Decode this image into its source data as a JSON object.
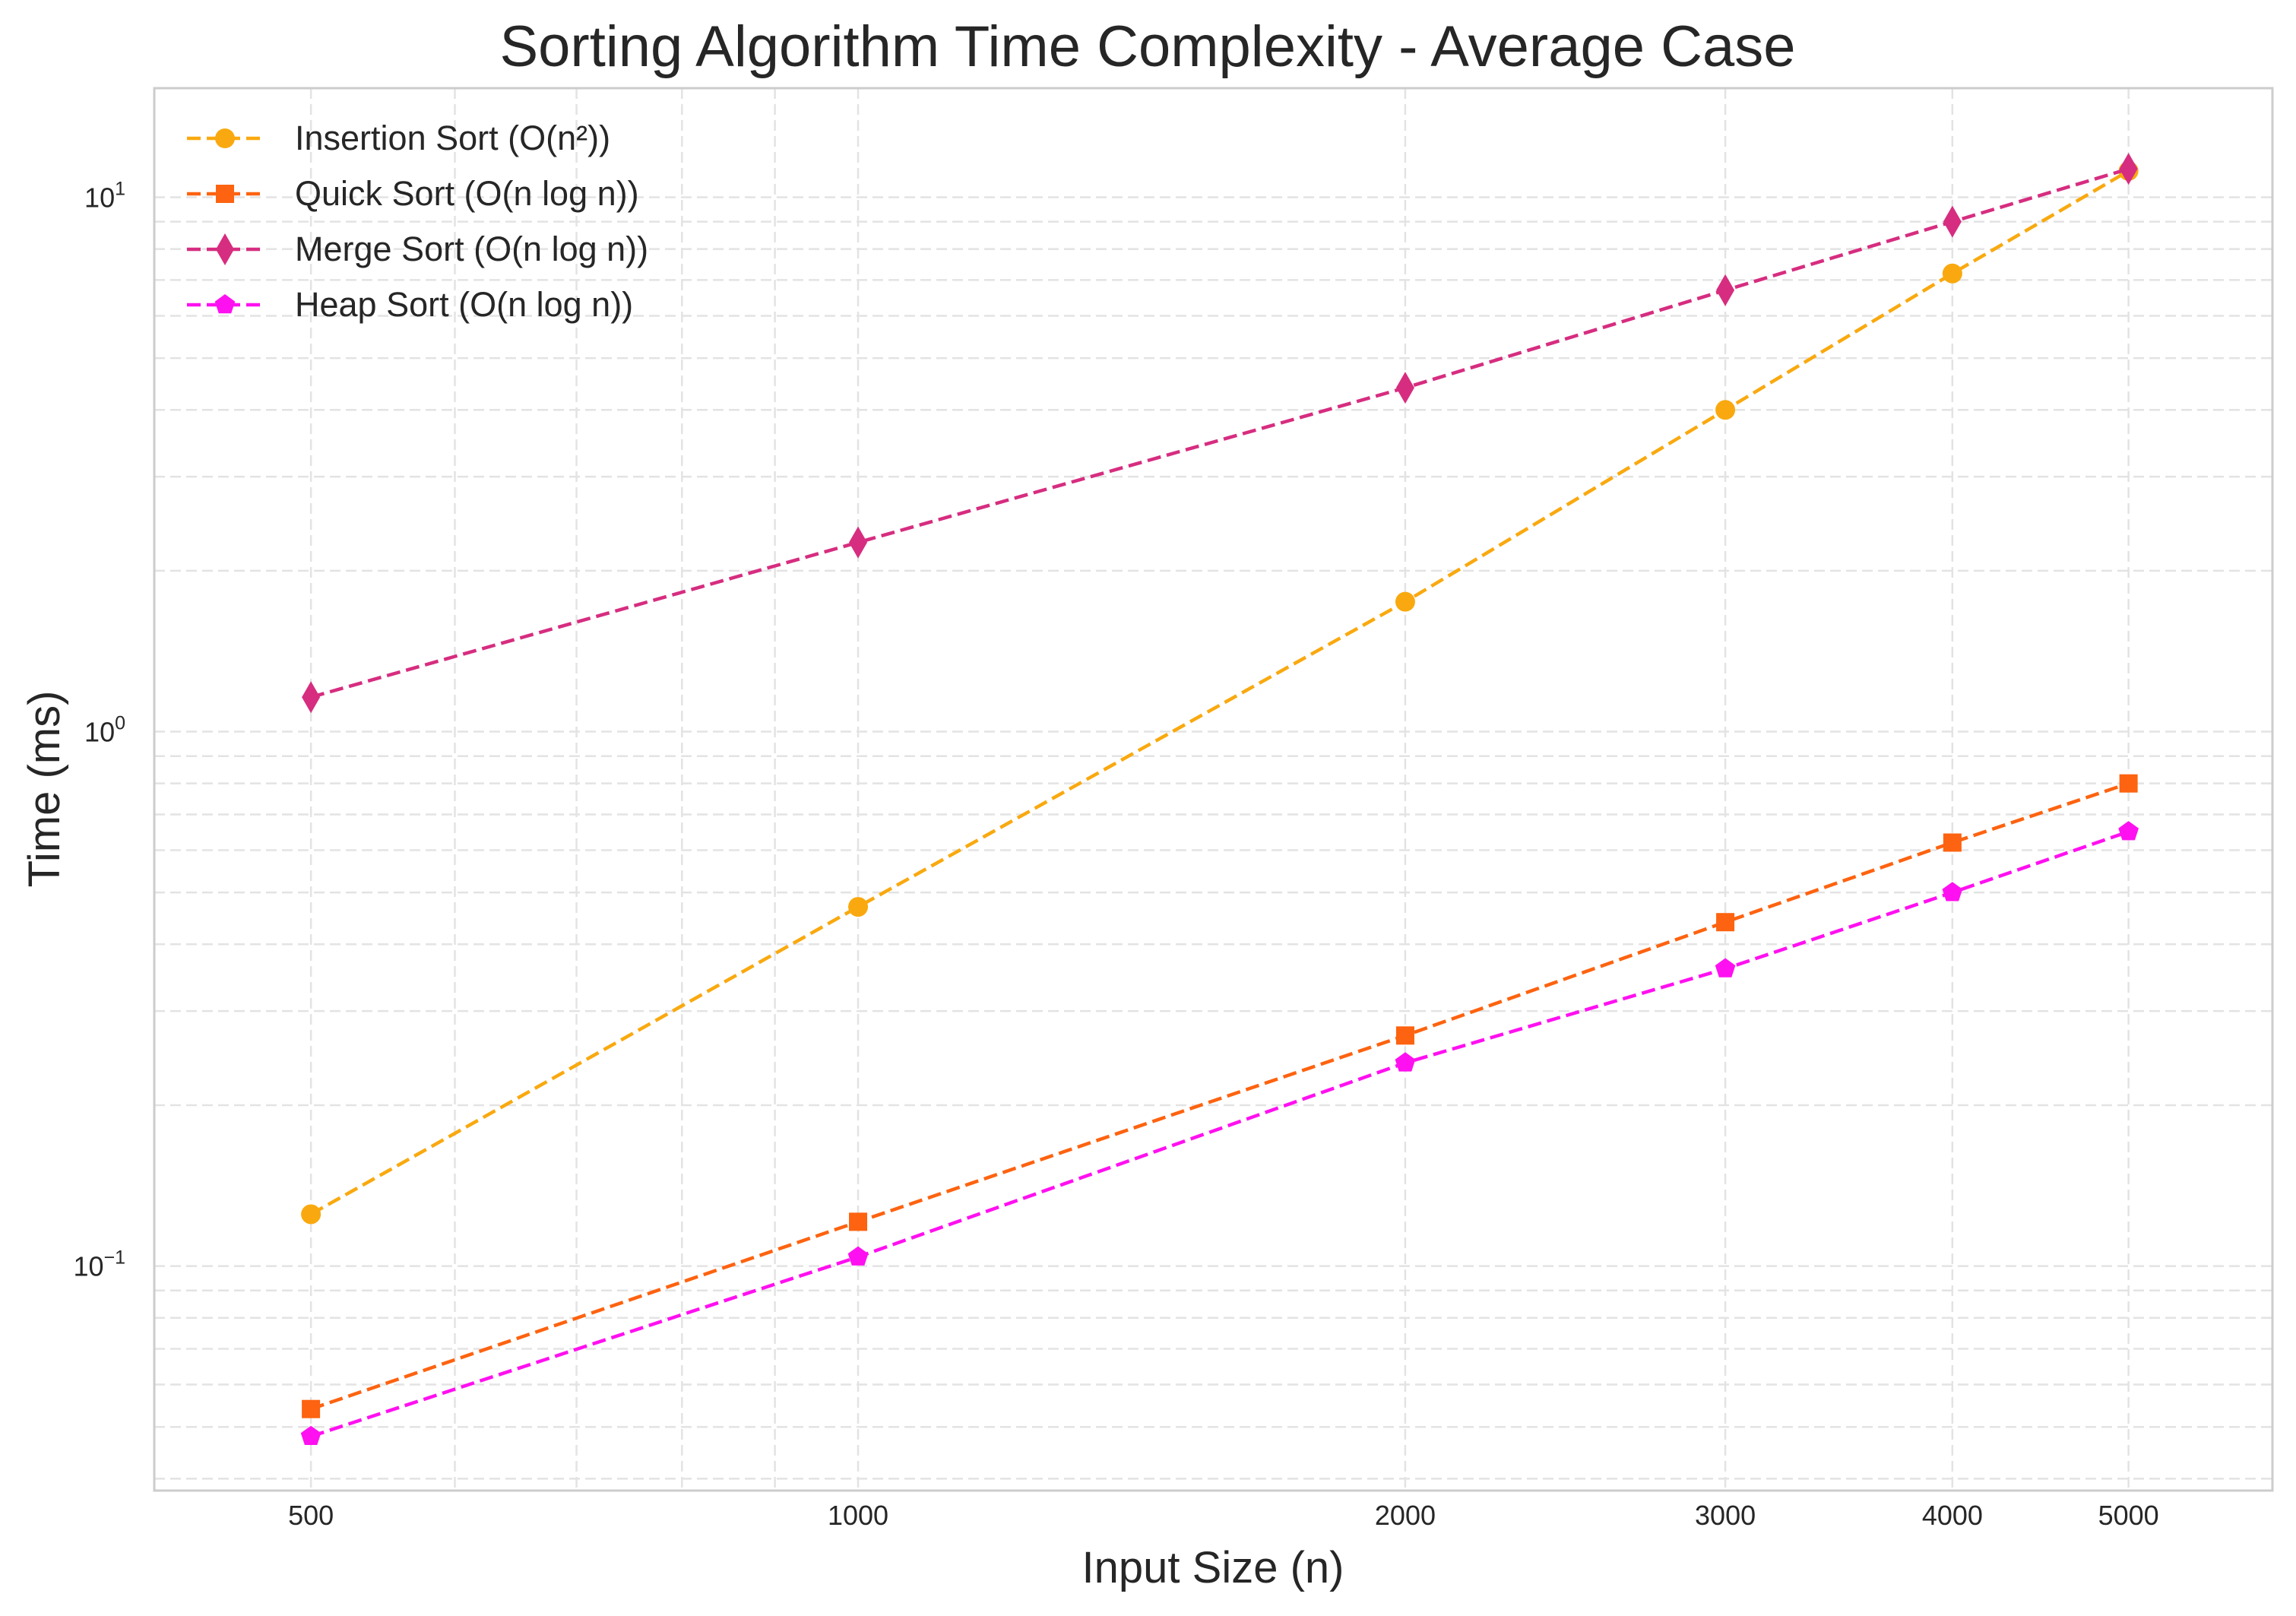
{
  "chart_data": {
    "type": "line",
    "title": "Sorting Algorithm Time Complexity - Average Case",
    "xlabel": "Input Size (n)",
    "ylabel": "Time (ms)",
    "xscale": "log",
    "yscale": "log",
    "x": [
      500,
      1000,
      2000,
      3000,
      4000,
      5000
    ],
    "xticks": [
      "500",
      "1000",
      "2000",
      "3000",
      "4000",
      "5000"
    ],
    "yticks": [
      {
        "base": "10",
        "exp": "−1",
        "value": 0.1
      },
      {
        "base": "10",
        "exp": "0",
        "value": 1
      },
      {
        "base": "10",
        "exp": "1",
        "value": 10
      }
    ],
    "xlim": [
      410,
      6000
    ],
    "ylim": [
      0.038,
      16
    ],
    "grid": true,
    "legend_position": "top-left",
    "series": [
      {
        "name": "Insertion Sort (O(n²))",
        "color": "#F9A90F",
        "marker": "circle",
        "values": [
          0.125,
          0.47,
          1.75,
          4.0,
          7.2,
          11.2
        ]
      },
      {
        "name": "Quick Sort (O(n log n))",
        "color": "#FD6310",
        "marker": "square",
        "values": [
          0.054,
          0.121,
          0.27,
          0.44,
          0.62,
          0.8
        ]
      },
      {
        "name": "Merge Sort (O(n log n))",
        "color": "#D62D80",
        "marker": "thin-diamond",
        "values": [
          1.16,
          2.26,
          4.4,
          6.7,
          9.0,
          11.3
        ]
      },
      {
        "name": "Heap Sort (O(n log n))",
        "color": "#FF10F0",
        "marker": "pentagon",
        "values": [
          0.048,
          0.104,
          0.24,
          0.36,
          0.5,
          0.65
        ]
      }
    ]
  }
}
